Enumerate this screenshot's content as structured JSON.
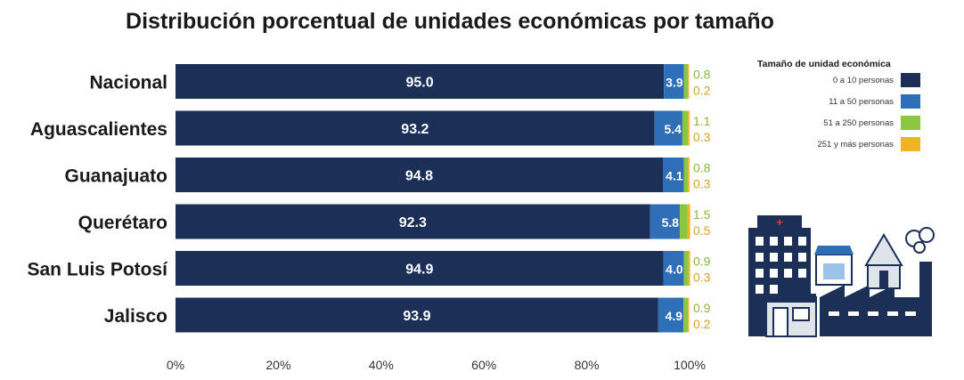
{
  "chart_data": {
    "type": "bar",
    "orientation": "horizontal",
    "stacked": true,
    "title": "Distribución porcentual de unidades económicas por tamaño",
    "categories": [
      "Nacional",
      "Aguascalientes",
      "Guanajuato",
      "Querétaro",
      "San Luis Potosí",
      "Jalisco"
    ],
    "series": [
      {
        "name": "0 a 10 personas",
        "color": "#1b2f57",
        "values": [
          95.0,
          93.2,
          94.8,
          92.3,
          94.9,
          93.9
        ],
        "labels": [
          "95.0",
          "93.2",
          "94.8",
          "92.3",
          "94.9",
          "93.9"
        ]
      },
      {
        "name": "11 a 50 personas",
        "color": "#2e6fb7",
        "values": [
          3.9,
          5.4,
          4.1,
          5.8,
          4.0,
          4.9
        ],
        "labels": [
          "3.9",
          "5.4",
          "4.1",
          "5.8",
          "4.0",
          "4.9"
        ]
      },
      {
        "name": "51 a 250 personas",
        "color": "#8cc63f",
        "values": [
          0.8,
          1.1,
          0.8,
          1.5,
          0.9,
          0.9
        ],
        "labels": [
          "0.8",
          "1.1",
          "0.8",
          "1.5",
          "0.9",
          "0.9"
        ]
      },
      {
        "name": "251 y más personas",
        "color": "#f0b323",
        "values": [
          0.2,
          0.3,
          0.3,
          0.5,
          0.3,
          0.2
        ],
        "labels": [
          "0.2",
          "0.3",
          "0.3",
          "0.5",
          "0.3",
          "0.2"
        ]
      }
    ],
    "x_ticks": [
      "0%",
      "20%",
      "40%",
      "60%",
      "80%",
      "100%"
    ],
    "xlim": [
      0,
      100
    ],
    "grid": false,
    "legend": {
      "title": "Tamaño de unidad económica",
      "position": "right"
    },
    "label_colors": {
      "small": "#b59a2a"
    }
  }
}
